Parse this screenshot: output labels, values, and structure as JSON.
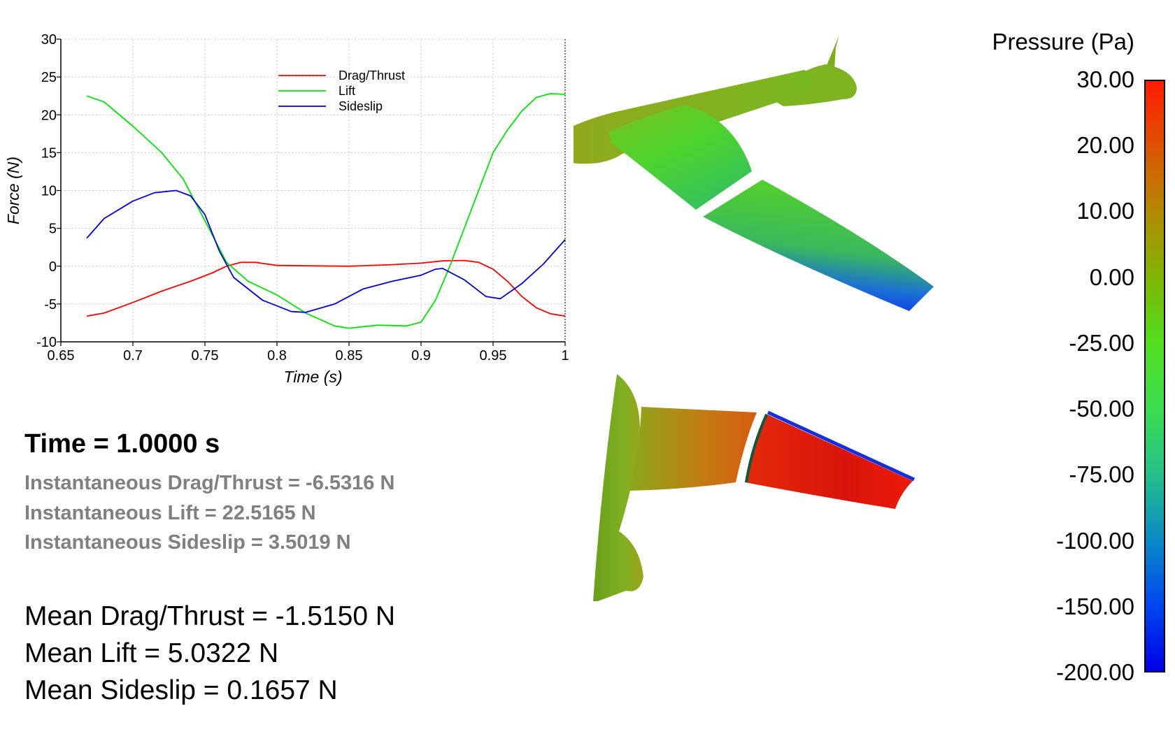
{
  "chart_data": {
    "type": "line",
    "xlabel": "Time (s)",
    "ylabel": "Force (N)",
    "xlim": [
      0.65,
      1.0
    ],
    "ylim": [
      -10,
      30
    ],
    "xticks": [
      "0.65",
      "0.7",
      "0.75",
      "0.8",
      "0.85",
      "0.9",
      "0.95",
      "1"
    ],
    "yticks": [
      "-10",
      "-5",
      "0",
      "5",
      "10",
      "15",
      "20",
      "25",
      "30"
    ],
    "grid": true,
    "legend_position": "top-center",
    "series": [
      {
        "name": "Drag/Thrust",
        "color": "#ff0000",
        "points": [
          [
            0.668,
            -6.6
          ],
          [
            0.68,
            -6.2
          ],
          [
            0.7,
            -4.8
          ],
          [
            0.72,
            -3.3
          ],
          [
            0.74,
            -2.0
          ],
          [
            0.755,
            -0.9
          ],
          [
            0.765,
            0.0
          ],
          [
            0.775,
            0.5
          ],
          [
            0.785,
            0.5
          ],
          [
            0.8,
            0.1
          ],
          [
            0.82,
            0.05
          ],
          [
            0.85,
            0.0
          ],
          [
            0.88,
            0.2
          ],
          [
            0.9,
            0.4
          ],
          [
            0.915,
            0.7
          ],
          [
            0.93,
            0.75
          ],
          [
            0.94,
            0.5
          ],
          [
            0.95,
            -0.4
          ],
          [
            0.96,
            -2.0
          ],
          [
            0.97,
            -4.0
          ],
          [
            0.98,
            -5.5
          ],
          [
            0.99,
            -6.3
          ],
          [
            1.0,
            -6.6
          ]
        ]
      },
      {
        "name": "Lift",
        "color": "#00e800",
        "points": [
          [
            0.668,
            22.5
          ],
          [
            0.68,
            21.7
          ],
          [
            0.7,
            18.5
          ],
          [
            0.72,
            15.0
          ],
          [
            0.735,
            11.5
          ],
          [
            0.75,
            6.0
          ],
          [
            0.765,
            0.5
          ],
          [
            0.78,
            -2.0
          ],
          [
            0.8,
            -3.8
          ],
          [
            0.82,
            -6.2
          ],
          [
            0.84,
            -7.9
          ],
          [
            0.85,
            -8.2
          ],
          [
            0.87,
            -7.8
          ],
          [
            0.89,
            -7.9
          ],
          [
            0.9,
            -7.4
          ],
          [
            0.91,
            -4.5
          ],
          [
            0.92,
            0.0
          ],
          [
            0.93,
            5.0
          ],
          [
            0.94,
            10.0
          ],
          [
            0.95,
            15.0
          ],
          [
            0.96,
            18.0
          ],
          [
            0.97,
            20.5
          ],
          [
            0.98,
            22.3
          ],
          [
            0.99,
            22.8
          ],
          [
            1.0,
            22.7
          ]
        ]
      },
      {
        "name": "Sideslip",
        "color": "#0000e0",
        "points": [
          [
            0.668,
            3.7
          ],
          [
            0.68,
            6.3
          ],
          [
            0.7,
            8.6
          ],
          [
            0.715,
            9.7
          ],
          [
            0.73,
            10.0
          ],
          [
            0.74,
            9.3
          ],
          [
            0.75,
            6.8
          ],
          [
            0.76,
            2.0
          ],
          [
            0.77,
            -1.5
          ],
          [
            0.79,
            -4.5
          ],
          [
            0.81,
            -6.0
          ],
          [
            0.82,
            -6.1
          ],
          [
            0.84,
            -5.0
          ],
          [
            0.86,
            -3.0
          ],
          [
            0.88,
            -2.0
          ],
          [
            0.9,
            -1.2
          ],
          [
            0.91,
            -0.4
          ],
          [
            0.915,
            -0.3
          ],
          [
            0.93,
            -1.8
          ],
          [
            0.945,
            -4.0
          ],
          [
            0.955,
            -4.3
          ],
          [
            0.97,
            -2.3
          ],
          [
            0.985,
            0.3
          ],
          [
            1.0,
            3.5
          ]
        ]
      }
    ]
  },
  "stats": {
    "time": "Time = 1.0000 s",
    "inst_drag": "Instantaneous Drag/Thrust = -6.5316 N",
    "inst_lift": "Instantaneous Lift = 22.5165 N",
    "inst_side": "Instantaneous Sideslip = 3.5019 N",
    "mean_drag": "Mean Drag/Thrust = -1.5150 N",
    "mean_lift": "Mean Lift = 5.0322 N",
    "mean_side": "Mean Sideslip = 0.1657 N"
  },
  "colorbar": {
    "title": "Pressure (Pa)",
    "ticks": [
      "30.00",
      "20.00",
      "10.00",
      "0.00",
      "-25.00",
      "-50.00",
      "-75.00",
      "-100.00",
      "-150.00",
      "-200.00"
    ],
    "colors": [
      "#ff1a00",
      "#dd5400",
      "#b38a00",
      "#7fb600",
      "#52de1f",
      "#3bdd50",
      "#24c08a",
      "#0a8ac6",
      "#0046ef",
      "#0000e6"
    ]
  },
  "model_colors": {
    "body": "#7fb41e",
    "fresh_green": "#50d32e",
    "blue": "#0a2dea",
    "red": "#ee1a0a"
  }
}
